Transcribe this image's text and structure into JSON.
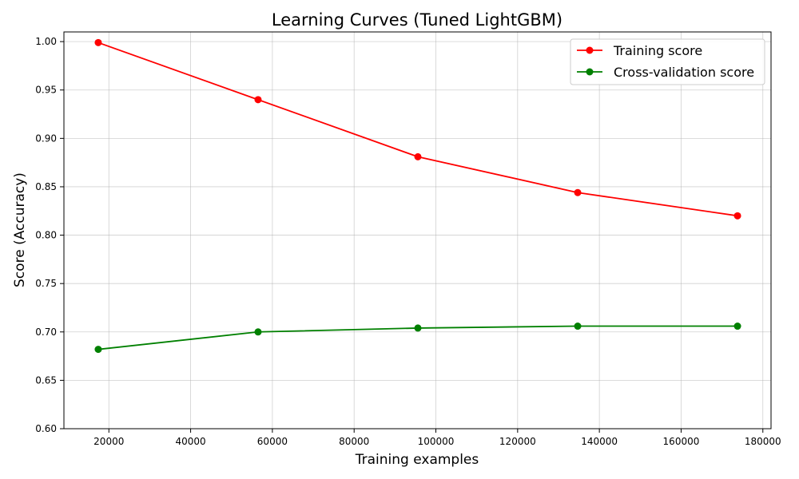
{
  "chart_data": {
    "type": "line",
    "title": "Learning Curves (Tuned LightGBM)",
    "xlabel": "Training examples",
    "ylabel": "Score (Accuracy)",
    "xlim": [
      9000,
      182000
    ],
    "ylim": [
      0.6,
      1.01
    ],
    "xticks": [
      20000,
      40000,
      60000,
      80000,
      100000,
      120000,
      140000,
      160000,
      180000
    ],
    "yticks": [
      0.6,
      0.65,
      0.7,
      0.75,
      0.8,
      0.85,
      0.9,
      0.95,
      1.0
    ],
    "x": [
      17400,
      56500,
      95600,
      134700,
      173800
    ],
    "grid": true,
    "legend_position": "top-right",
    "series": [
      {
        "name": "Training score",
        "color": "#ff0000",
        "values": [
          0.999,
          0.94,
          0.881,
          0.844,
          0.82
        ]
      },
      {
        "name": "Cross-validation score",
        "color": "#008000",
        "values": [
          0.682,
          0.7,
          0.704,
          0.706,
          0.706
        ]
      }
    ]
  }
}
